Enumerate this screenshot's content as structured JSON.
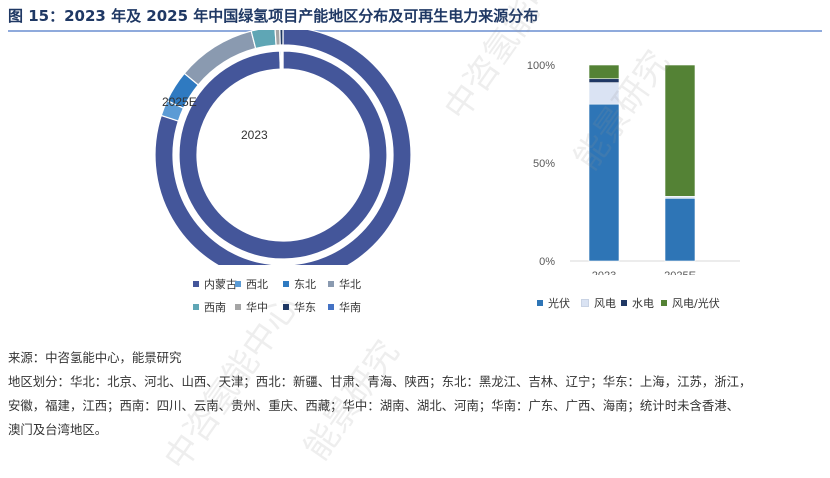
{
  "title": "图 15：2023 年及 2025 年中国绿氢项目产能地区分布及可再生电力来源分布",
  "watermarks": [
    "中咨氢能中心",
    "能景研究"
  ],
  "chart_data": [
    {
      "type": "donut",
      "rings": [
        {
          "label": "2023",
          "values": [
            {
              "name": "内蒙古",
              "value": 0.995
            },
            {
              "name": "东北",
              "value": 0.002
            },
            {
              "name": "华北",
              "value": 0.001
            },
            {
              "name": "西南",
              "value": 0.001
            },
            {
              "name": "华东",
              "value": 0.001
            }
          ]
        },
        {
          "label": "2025E",
          "values": [
            {
              "name": "内蒙古",
              "value": 0.8
            },
            {
              "name": "西北",
              "value": 0.02
            },
            {
              "name": "东北",
              "value": 0.04
            },
            {
              "name": "华北",
              "value": 0.1
            },
            {
              "name": "西南",
              "value": 0.03
            },
            {
              "name": "华中",
              "value": 0.006
            },
            {
              "name": "华东",
              "value": 0.004
            }
          ]
        }
      ],
      "legend": [
        "内蒙古",
        "西北",
        "东北",
        "华北",
        "西南",
        "华中",
        "华东",
        "华南"
      ],
      "colors": {
        "内蒙古": "#44569a",
        "西北": "#5b9bd5",
        "东北": "#2f7ac1",
        "华北": "#8a9ab0",
        "西南": "#5fa6b5",
        "华中": "#a5a5a5",
        "华东": "#1f3864",
        "华南": "#4472c4"
      }
    },
    {
      "type": "bar",
      "stacked": true,
      "categories": [
        "2023",
        "2025E"
      ],
      "series": [
        {
          "name": "光伏",
          "values": [
            80,
            32
          ]
        },
        {
          "name": "风电",
          "values": [
            11,
            1
          ]
        },
        {
          "name": "水电",
          "values": [
            2,
            0
          ]
        },
        {
          "name": "风电/光伏",
          "values": [
            7,
            67
          ]
        }
      ],
      "ylim": [
        0,
        100
      ],
      "yticks": [
        "0%",
        "50%",
        "100%"
      ],
      "colors": {
        "光伏": "#2e75b6",
        "风电": "#dae3f3",
        "水电": "#203864",
        "风电/光伏": "#548235"
      }
    }
  ],
  "footer": [
    "来源：中咨氢能中心，能景研究",
    "地区划分：华北：北京、河北、山西、天津；西北：新疆、甘肃、青海、陕西；东北：黑龙江、吉林、辽宁；华东：上海，江苏，浙江，",
    "安徽，福建，江西；西南：四川、云南、贵州、重庆、西藏；华中：湖南、湖北、河南；华南：广东、广西、海南；统计时未含香港、",
    "澳门及台湾地区。"
  ]
}
